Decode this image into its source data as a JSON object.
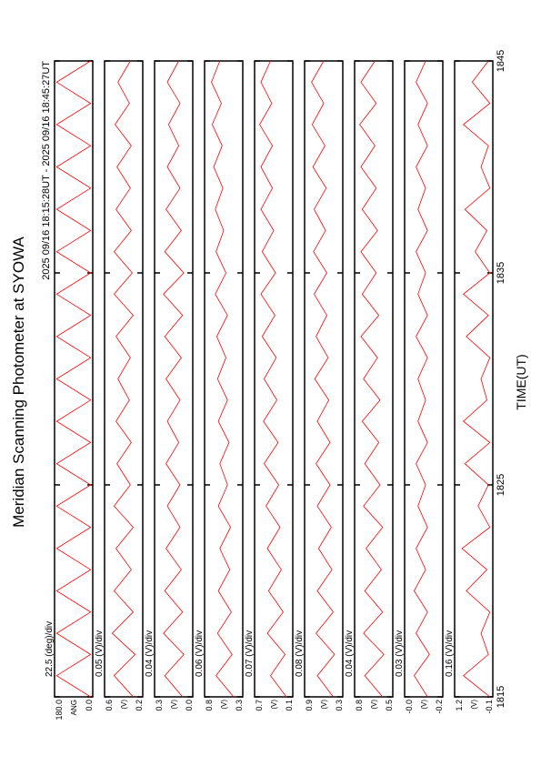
{
  "chart_data": {
    "type": "line",
    "title": "Meridian Scanning Photometer at SYOWA",
    "subtitle": "2025 09/16 18:15:28UT - 2025 09/16 18:45:27UT",
    "xlabel": "TIME(UT)",
    "xlim": [
      1815,
      1845
    ],
    "xticks": [
      1815,
      1825,
      1835,
      1845
    ],
    "x": [
      1815,
      1816,
      1817,
      1818,
      1819,
      1820,
      1821,
      1822,
      1823,
      1824,
      1825,
      1826,
      1827,
      1828,
      1829,
      1830,
      1831,
      1832,
      1833,
      1834,
      1835,
      1836,
      1837,
      1838,
      1839,
      1840,
      1841,
      1842,
      1843,
      1844,
      1845
    ],
    "color": "#ff0000",
    "panels": [
      {
        "scale_label": "22.5 (deg)/div",
        "ylabel": "ANG",
        "ylim": [
          0,
          180
        ],
        "yticks": [
          {
            "value": 180,
            "label": "180.0"
          },
          {
            "value": 0,
            "label": "0.0"
          }
        ],
        "values": [
          10,
          170,
          10,
          170,
          10,
          170,
          10,
          170,
          10,
          170,
          10,
          170,
          10,
          170,
          10,
          170,
          10,
          170,
          10,
          170,
          10,
          170,
          10,
          170,
          10,
          170,
          10,
          170,
          10,
          170,
          10
        ]
      },
      {
        "scale_label": "0.05 (V)/div",
        "ylabel": "(V)",
        "ylim": [
          0.2,
          0.6
        ],
        "yticks": [
          0.6,
          0.2
        ],
        "values": [
          0.3,
          0.5,
          0.28,
          0.52,
          0.3,
          0.5,
          0.32,
          0.48,
          0.3,
          0.5,
          0.33,
          0.47,
          0.32,
          0.48,
          0.34,
          0.46,
          0.33,
          0.48,
          0.3,
          0.5,
          0.31,
          0.5,
          0.32,
          0.48,
          0.33,
          0.47,
          0.32,
          0.49,
          0.34,
          0.46,
          0.33
        ]
      },
      {
        "scale_label": "0.04 (V)/div",
        "ylabel": "(V)",
        "ylim": [
          0.0,
          0.3
        ],
        "yticks": [
          0.3,
          {
            "value": 0,
            "label": "0.0"
          }
        ],
        "values": [
          0.08,
          0.22,
          0.07,
          0.23,
          0.08,
          0.22,
          0.09,
          0.21,
          0.1,
          0.2,
          0.1,
          0.21,
          0.11,
          0.2,
          0.1,
          0.21,
          0.09,
          0.22,
          0.08,
          0.23,
          0.07,
          0.22,
          0.09,
          0.21,
          0.1,
          0.2,
          0.11,
          0.19,
          0.1,
          0.2,
          0.11
        ]
      },
      {
        "scale_label": "0.06 (V)/div",
        "ylabel": "(V)",
        "ylim": [
          0.3,
          0.8
        ],
        "yticks": [
          0.8,
          0.3
        ],
        "values": [
          0.42,
          0.65,
          0.44,
          0.63,
          0.45,
          0.62,
          0.47,
          0.6,
          0.46,
          0.62,
          0.5,
          0.6,
          0.48,
          0.62,
          0.5,
          0.63,
          0.52,
          0.64,
          0.5,
          0.66,
          0.52,
          0.65,
          0.55,
          0.66,
          0.56,
          0.68,
          0.57,
          0.7,
          0.58,
          0.71,
          0.6
        ]
      },
      {
        "scale_label": "0.07 (V)/div",
        "ylabel": "(V)",
        "ylim": [
          0.1,
          0.7
        ],
        "yticks": [
          0.7,
          0.1
        ],
        "values": [
          0.2,
          0.45,
          0.22,
          0.5,
          0.25,
          0.48,
          0.28,
          0.5,
          0.3,
          0.52,
          0.32,
          0.55,
          0.33,
          0.56,
          0.35,
          0.55,
          0.36,
          0.58,
          0.38,
          0.6,
          0.37,
          0.58,
          0.4,
          0.6,
          0.42,
          0.6,
          0.42,
          0.62,
          0.43,
          0.6,
          0.45
        ]
      },
      {
        "scale_label": "0.08 (V)/div",
        "ylabel": "(V)",
        "ylim": [
          0.3,
          0.9
        ],
        "yticks": [
          0.9,
          0.3
        ],
        "values": [
          0.45,
          0.7,
          0.43,
          0.72,
          0.45,
          0.7,
          0.47,
          0.68,
          0.48,
          0.7,
          0.5,
          0.72,
          0.5,
          0.7,
          0.52,
          0.74,
          0.53,
          0.72,
          0.55,
          0.75,
          0.55,
          0.76,
          0.57,
          0.75,
          0.56,
          0.77,
          0.58,
          0.78,
          0.6,
          0.79,
          0.6
        ]
      },
      {
        "scale_label": "0.04 (V)/div",
        "ylabel": "(V)",
        "ylim": [
          0.5,
          0.8
        ],
        "yticks": [
          0.8,
          0.5
        ],
        "values": [
          0.58,
          0.72,
          0.57,
          0.73,
          0.58,
          0.72,
          0.59,
          0.71,
          0.58,
          0.73,
          0.6,
          0.72,
          0.61,
          0.74,
          0.6,
          0.73,
          0.62,
          0.75,
          0.61,
          0.74,
          0.63,
          0.75,
          0.62,
          0.74,
          0.63,
          0.75,
          0.64,
          0.76,
          0.63,
          0.75,
          0.64
        ]
      },
      {
        "scale_label": "0.03 (V)/div",
        "ylabel": "(V)",
        "ylim": [
          -0.2,
          0.0
        ],
        "yticks": [
          {
            "value": 0,
            "label": "-0.0"
          },
          -0.2
        ],
        "values": [
          -0.12,
          -0.05,
          -0.13,
          -0.06,
          -0.12,
          -0.05,
          -0.11,
          -0.06,
          -0.12,
          -0.07,
          -0.11,
          -0.06,
          -0.12,
          -0.07,
          -0.11,
          -0.07,
          -0.12,
          -0.06,
          -0.12,
          -0.07,
          -0.11,
          -0.06,
          -0.12,
          -0.07,
          -0.11,
          -0.06,
          -0.12,
          -0.07,
          -0.12,
          -0.06,
          -0.11
        ]
      },
      {
        "scale_label": "0.16 (V)/div",
        "ylabel": "(V)",
        "ylim": [
          -0.1,
          1.2
        ],
        "yticks": [
          1.2,
          -0.1
        ],
        "values": [
          0.0,
          0.9,
          0.05,
          0.3,
          0.0,
          0.8,
          0.1,
          0.95,
          0.0,
          0.4,
          0.05,
          0.85,
          0.0,
          0.9,
          0.1,
          0.3,
          0.0,
          0.8,
          0.05,
          0.9,
          0.0,
          0.5,
          0.1,
          0.85,
          0.0,
          0.3,
          0.05,
          0.9,
          0.0,
          0.6,
          0.05
        ]
      }
    ]
  }
}
